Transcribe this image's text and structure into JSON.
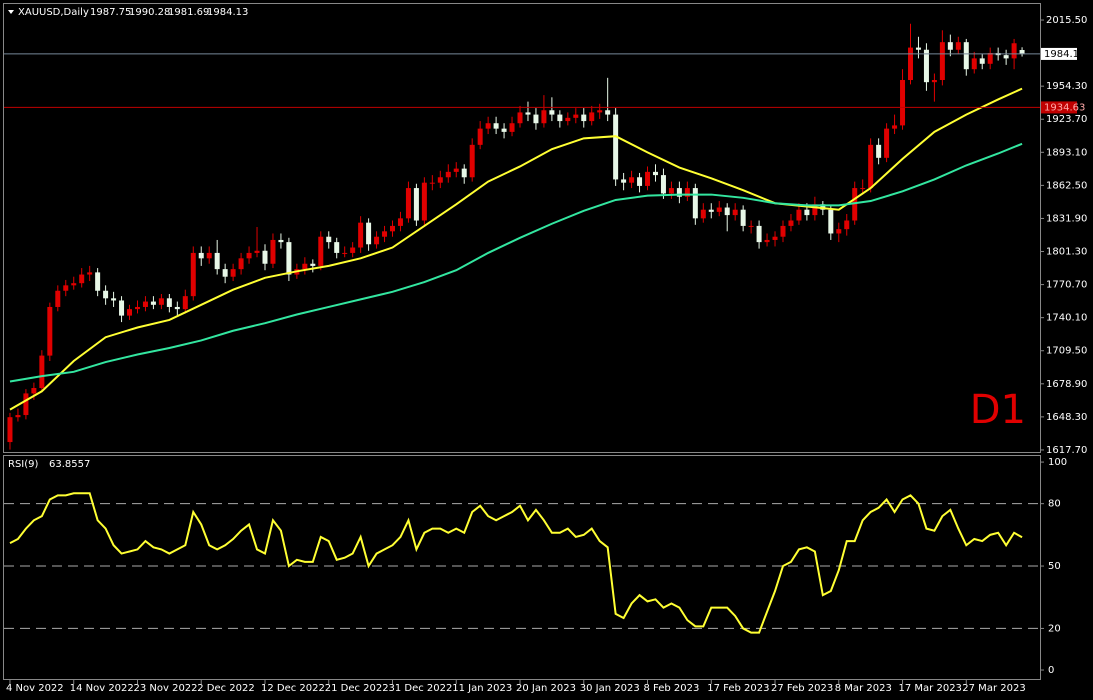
{
  "chart_data": [
    {
      "type": "candlestick",
      "title": "XAUUSD,Daily",
      "annotation": "D1",
      "up_color": "#e00000",
      "down_color": "#e8f8e8",
      "level": 1934.63,
      "level_color": "#c00000",
      "xlim": [
        -0.75,
        129.25
      ],
      "ylim": [
        1615.8,
        2029.4
      ],
      "yticks": [
        {
          "value": 2015.5,
          "label": "2015.50"
        },
        {
          "value": 1954.3,
          "label": "1954.30"
        },
        {
          "value": 1923.7,
          "label": "1923.70"
        },
        {
          "value": 1893.1,
          "label": "1893.10"
        },
        {
          "value": 1862.5,
          "label": "1862.50"
        },
        {
          "value": 1831.9,
          "label": "1831.90"
        },
        {
          "value": 1801.3,
          "label": "1801.30"
        },
        {
          "value": 1770.7,
          "label": "1770.70"
        },
        {
          "value": 1740.1,
          "label": "1740.10"
        },
        {
          "value": 1709.5,
          "label": "1709.50"
        },
        {
          "value": 1678.9,
          "label": "1678.90"
        },
        {
          "value": 1648.3,
          "label": "1648.30"
        },
        {
          "value": 1617.7,
          "label": "1617.70"
        }
      ],
      "ohlc": [
        [
          1625,
          1652,
          1618,
          1648
        ],
        [
          1648,
          1656,
          1644,
          1650
        ],
        [
          1650,
          1674,
          1646,
          1670
        ],
        [
          1670,
          1680,
          1664,
          1675
        ],
        [
          1675,
          1710,
          1671,
          1705
        ],
        [
          1705,
          1754,
          1700,
          1750
        ],
        [
          1750,
          1770,
          1746,
          1765
        ],
        [
          1765,
          1775,
          1760,
          1770
        ],
        [
          1770,
          1778,
          1766,
          1772
        ],
        [
          1772,
          1786,
          1768,
          1780
        ],
        [
          1780,
          1788,
          1774,
          1782
        ],
        [
          1782,
          1786,
          1760,
          1765
        ],
        [
          1765,
          1770,
          1752,
          1758
        ],
        [
          1758,
          1764,
          1750,
          1756
        ],
        [
          1756,
          1760,
          1736,
          1742
        ],
        [
          1742,
          1752,
          1738,
          1748
        ],
        [
          1748,
          1756,
          1744,
          1750
        ],
        [
          1750,
          1760,
          1746,
          1755
        ],
        [
          1755,
          1760,
          1748,
          1752
        ],
        [
          1752,
          1762,
          1748,
          1758
        ],
        [
          1758,
          1762,
          1745,
          1750
        ],
        [
          1750,
          1755,
          1742,
          1748
        ],
        [
          1748,
          1766,
          1744,
          1760
        ],
        [
          1760,
          1806,
          1756,
          1800
        ],
        [
          1800,
          1806,
          1788,
          1795
        ],
        [
          1795,
          1806,
          1790,
          1800
        ],
        [
          1800,
          1812,
          1780,
          1785
        ],
        [
          1785,
          1790,
          1772,
          1778
        ],
        [
          1778,
          1790,
          1774,
          1785
        ],
        [
          1785,
          1800,
          1780,
          1795
        ],
        [
          1795,
          1806,
          1790,
          1800
        ],
        [
          1800,
          1824,
          1796,
          1802
        ],
        [
          1802,
          1808,
          1784,
          1790
        ],
        [
          1790,
          1818,
          1786,
          1812
        ],
        [
          1812,
          1818,
          1804,
          1810
        ],
        [
          1810,
          1814,
          1774,
          1780
        ],
        [
          1780,
          1790,
          1776,
          1785
        ],
        [
          1785,
          1796,
          1780,
          1790
        ],
        [
          1790,
          1794,
          1782,
          1788
        ],
        [
          1788,
          1820,
          1784,
          1815
        ],
        [
          1815,
          1820,
          1804,
          1810
        ],
        [
          1810,
          1814,
          1795,
          1800
        ],
        [
          1800,
          1806,
          1796,
          1800
        ],
        [
          1800,
          1810,
          1796,
          1805
        ],
        [
          1805,
          1834,
          1800,
          1828
        ],
        [
          1828,
          1832,
          1802,
          1808
        ],
        [
          1808,
          1820,
          1804,
          1815
        ],
        [
          1815,
          1825,
          1810,
          1820
        ],
        [
          1820,
          1830,
          1815,
          1825
        ],
        [
          1825,
          1838,
          1820,
          1832
        ],
        [
          1832,
          1866,
          1828,
          1860
        ],
        [
          1860,
          1864,
          1825,
          1830
        ],
        [
          1830,
          1870,
          1826,
          1865
        ],
        [
          1865,
          1872,
          1858,
          1865
        ],
        [
          1865,
          1876,
          1860,
          1870
        ],
        [
          1870,
          1882,
          1865,
          1875
        ],
        [
          1875,
          1884,
          1870,
          1878
        ],
        [
          1878,
          1882,
          1864,
          1870
        ],
        [
          1870,
          1906,
          1866,
          1900
        ],
        [
          1900,
          1922,
          1896,
          1915
        ],
        [
          1915,
          1926,
          1910,
          1920
        ],
        [
          1920,
          1926,
          1910,
          1915
        ],
        [
          1915,
          1920,
          1906,
          1912
        ],
        [
          1912,
          1926,
          1908,
          1920
        ],
        [
          1920,
          1936,
          1916,
          1930
        ],
        [
          1930,
          1940,
          1922,
          1928
        ],
        [
          1928,
          1934,
          1914,
          1920
        ],
        [
          1920,
          1946,
          1916,
          1932
        ],
        [
          1932,
          1944,
          1922,
          1928
        ],
        [
          1928,
          1932,
          1916,
          1922
        ],
        [
          1922,
          1930,
          1918,
          1925
        ],
        [
          1925,
          1934,
          1920,
          1928
        ],
        [
          1928,
          1934,
          1916,
          1922
        ],
        [
          1922,
          1936,
          1918,
          1930
        ],
        [
          1930,
          1938,
          1924,
          1932
        ],
        [
          1932,
          1962,
          1922,
          1928
        ],
        [
          1928,
          1934,
          1862,
          1868
        ],
        [
          1868,
          1874,
          1858,
          1865
        ],
        [
          1865,
          1876,
          1860,
          1870
        ],
        [
          1870,
          1874,
          1856,
          1862
        ],
        [
          1862,
          1880,
          1858,
          1875
        ],
        [
          1875,
          1882,
          1866,
          1872
        ],
        [
          1872,
          1878,
          1850,
          1855
        ],
        [
          1855,
          1866,
          1850,
          1860
        ],
        [
          1860,
          1866,
          1846,
          1852
        ],
        [
          1852,
          1866,
          1848,
          1860
        ],
        [
          1860,
          1864,
          1826,
          1832
        ],
        [
          1832,
          1846,
          1828,
          1840
        ],
        [
          1840,
          1846,
          1832,
          1838
        ],
        [
          1838,
          1848,
          1834,
          1842
        ],
        [
          1842,
          1846,
          1820,
          1835
        ],
        [
          1835,
          1846,
          1830,
          1840
        ],
        [
          1840,
          1844,
          1820,
          1825
        ],
        [
          1825,
          1830,
          1818,
          1825
        ],
        [
          1825,
          1830,
          1804,
          1810
        ],
        [
          1810,
          1818,
          1806,
          1812
        ],
        [
          1812,
          1820,
          1806,
          1815
        ],
        [
          1815,
          1830,
          1810,
          1825
        ],
        [
          1825,
          1836,
          1820,
          1830
        ],
        [
          1830,
          1846,
          1826,
          1840
        ],
        [
          1840,
          1846,
          1830,
          1835
        ],
        [
          1835,
          1852,
          1830,
          1845
        ],
        [
          1845,
          1848,
          1835,
          1840
        ],
        [
          1840,
          1844,
          1812,
          1818
        ],
        [
          1818,
          1828,
          1810,
          1822
        ],
        [
          1822,
          1836,
          1816,
          1830
        ],
        [
          1830,
          1866,
          1826,
          1860
        ],
        [
          1860,
          1868,
          1854,
          1860
        ],
        [
          1860,
          1906,
          1856,
          1900
        ],
        [
          1900,
          1906,
          1882,
          1888
        ],
        [
          1888,
          1920,
          1884,
          1915
        ],
        [
          1915,
          1928,
          1910,
          1918
        ],
        [
          1918,
          1970,
          1914,
          1960
        ],
        [
          1960,
          2012,
          1956,
          1990
        ],
        [
          1990,
          2000,
          1980,
          1988
        ],
        [
          1988,
          1994,
          1950,
          1958
        ],
        [
          1958,
          1966,
          1940,
          1960
        ],
        [
          1960,
          2006,
          1955,
          1995
        ],
        [
          1995,
          2002,
          1982,
          1988
        ],
        [
          1988,
          2000,
          1984,
          1995
        ],
        [
          1995,
          1998,
          1964,
          1970
        ],
        [
          1970,
          1986,
          1966,
          1980
        ],
        [
          1980,
          1984,
          1970,
          1975
        ],
        [
          1975,
          1990,
          1970,
          1985
        ],
        [
          1985,
          1990,
          1978,
          1983
        ],
        [
          1983,
          1988,
          1974,
          1980
        ],
        [
          1980,
          1998,
          1970,
          1994
        ],
        [
          1987.75,
          1990.28,
          1981.69,
          1984.13
        ]
      ],
      "series": [
        {
          "color": "#ffff33",
          "x": [
            0,
            4,
            8,
            12,
            16,
            20,
            24,
            28,
            32,
            36,
            40,
            44,
            48,
            52,
            56,
            60,
            64,
            68,
            72,
            76,
            80,
            84,
            88,
            92,
            96,
            100,
            104,
            108,
            112,
            116,
            120,
            124,
            127
          ],
          "values": [
            1655,
            1672,
            1700,
            1722,
            1731,
            1738,
            1752,
            1766,
            1777,
            1783,
            1788,
            1795,
            1805,
            1825,
            1845,
            1866,
            1880,
            1896,
            1906,
            1908,
            1893,
            1879,
            1869,
            1858,
            1846,
            1843,
            1840,
            1860,
            1887,
            1912,
            1928,
            1942,
            1952
          ]
        },
        {
          "color": "#33e6a0",
          "x": [
            0,
            4,
            8,
            12,
            16,
            20,
            24,
            28,
            32,
            36,
            40,
            44,
            48,
            52,
            56,
            60,
            64,
            68,
            72,
            76,
            80,
            84,
            88,
            92,
            96,
            100,
            104,
            108,
            112,
            116,
            120,
            124,
            127
          ],
          "values": [
            1681,
            1686,
            1690,
            1699,
            1706,
            1712,
            1719,
            1728,
            1735,
            1743,
            1750,
            1757,
            1764,
            1773,
            1784,
            1800,
            1814,
            1827,
            1839,
            1849,
            1853,
            1854,
            1854,
            1851,
            1846,
            1844,
            1844,
            1848,
            1857,
            1868,
            1881,
            1892,
            1901
          ]
        }
      ]
    },
    {
      "type": "line",
      "title": "RSI(9)",
      "color": "#ffff33",
      "xlim": [
        -0.75,
        129.25
      ],
      "ylim": [
        -4.8,
        103.4
      ],
      "yticks": [
        0,
        20,
        50,
        80,
        100
      ],
      "levels": [
        20,
        50,
        80
      ],
      "values": [
        61,
        63,
        68,
        72,
        74,
        82,
        84,
        84,
        85,
        85,
        85,
        72,
        68,
        60,
        56,
        57,
        58,
        62,
        59,
        58,
        56,
        58,
        60,
        76,
        70,
        60,
        58,
        60,
        63,
        67,
        70,
        58,
        56,
        72,
        67,
        50,
        53,
        52,
        52,
        64,
        62,
        53,
        54,
        56,
        64,
        50,
        56,
        58,
        60,
        64,
        72,
        58,
        66,
        68,
        68,
        66,
        68,
        66,
        76,
        79,
        74,
        72,
        74,
        76,
        79,
        72,
        77,
        72,
        66,
        66,
        68,
        64,
        65,
        68,
        62,
        59,
        27,
        25,
        32,
        36,
        33,
        34,
        30,
        32,
        30,
        24,
        21,
        21,
        30,
        30,
        30,
        26,
        20,
        18,
        18,
        28,
        38,
        50,
        52,
        58,
        59,
        57,
        36,
        38,
        48,
        62,
        62,
        72,
        76,
        78,
        82,
        76,
        82,
        84,
        80,
        68,
        67,
        74,
        77,
        68,
        60,
        63,
        62,
        65,
        66,
        60,
        66,
        63.8557
      ],
      "xticks": [
        {
          "value": 0,
          "label": "4 Nov 2022"
        },
        {
          "value": 8,
          "label": "14 Nov 2022"
        },
        {
          "value": 16,
          "label": "23 Nov 2022"
        },
        {
          "value": 24,
          "label": "2 Dec 2022"
        },
        {
          "value": 32,
          "label": "12 Dec 2022"
        },
        {
          "value": 40,
          "label": "21 Dec 2022"
        },
        {
          "value": 48,
          "label": "31 Dec 2022"
        },
        {
          "value": 56,
          "label": "11 Jan 2023"
        },
        {
          "value": 64,
          "label": "20 Jan 2023"
        },
        {
          "value": 72,
          "label": "30 Jan 2023"
        },
        {
          "value": 80,
          "label": "8 Feb 2023"
        },
        {
          "value": 88,
          "label": "17 Feb 2023"
        },
        {
          "value": 96,
          "label": "27 Feb 2023"
        },
        {
          "value": 104,
          "label": "8 Mar 2023"
        },
        {
          "value": 112,
          "label": "17 Mar 2023"
        },
        {
          "value": 120,
          "label": "27 Mar 2023"
        }
      ]
    }
  ]
}
